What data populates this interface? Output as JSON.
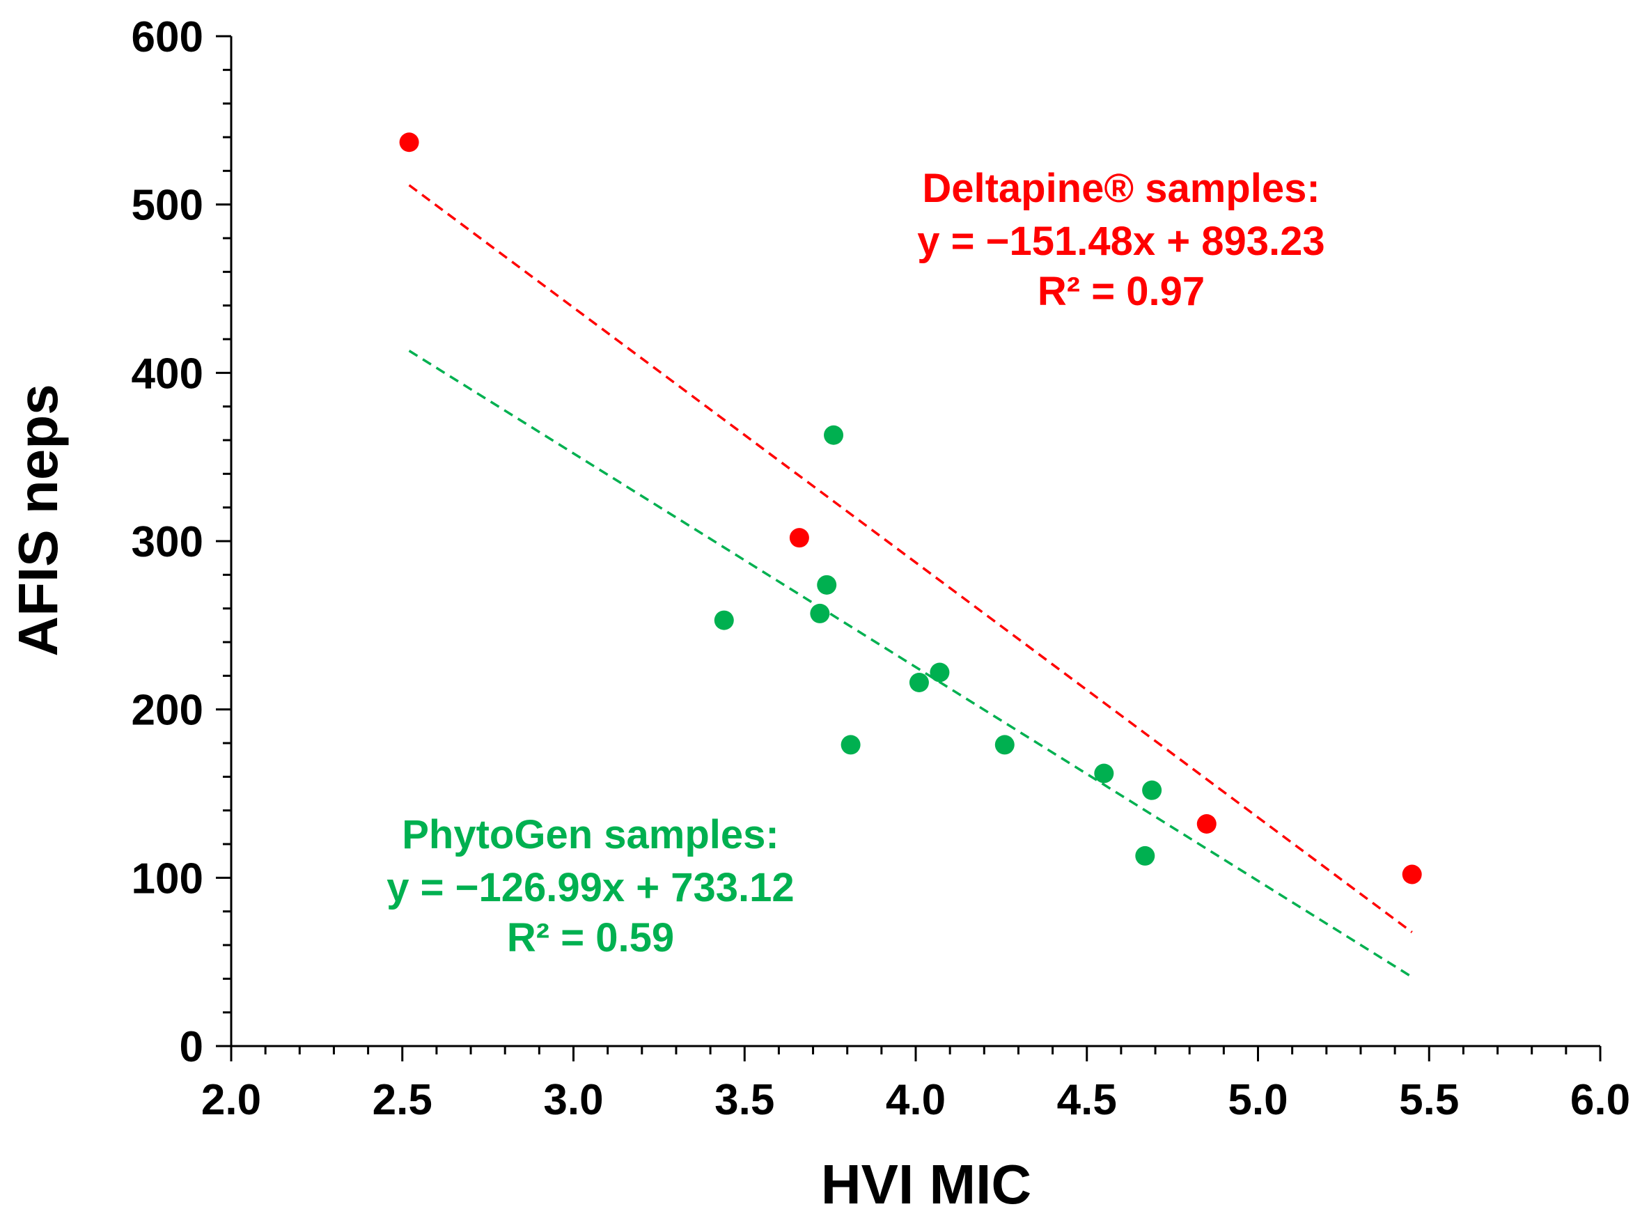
{
  "chart_data": {
    "type": "scatter",
    "xlabel": "HVI MIC",
    "ylabel": "AFIS neps",
    "xlim": [
      2.0,
      6.0
    ],
    "ylim": [
      0,
      600
    ],
    "x_ticks": [
      "2.0",
      "2.5",
      "3.0",
      "3.5",
      "4.0",
      "4.5",
      "5.0",
      "5.5",
      "6.0"
    ],
    "y_ticks": [
      "0",
      "100",
      "200",
      "300",
      "400",
      "500",
      "600"
    ],
    "x_tick_values": [
      2.0,
      2.5,
      3.0,
      3.5,
      4.0,
      4.5,
      5.0,
      5.5,
      6.0
    ],
    "y_tick_values": [
      0,
      100,
      200,
      300,
      400,
      500,
      600
    ],
    "grid": false,
    "legend": "none",
    "series": [
      {
        "color": "#ff0000",
        "points": [
          {
            "x": 2.52,
            "y": 537
          },
          {
            "x": 3.66,
            "y": 302
          },
          {
            "x": 4.85,
            "y": 132
          },
          {
            "x": 5.45,
            "y": 102
          }
        ],
        "trendline": {
          "slope": -151.48,
          "intercept": 893.23,
          "x_range": [
            2.52,
            5.45
          ]
        },
        "annotation": {
          "lines": [
            "Deltapine® samples:",
            "y = −151.48x + 893.23",
            "R² = 0.97"
          ]
        }
      },
      {
        "color": "#00b050",
        "points": [
          {
            "x": 3.44,
            "y": 253
          },
          {
            "x": 3.72,
            "y": 257
          },
          {
            "x": 3.74,
            "y": 274
          },
          {
            "x": 3.76,
            "y": 363
          },
          {
            "x": 3.81,
            "y": 179
          },
          {
            "x": 4.01,
            "y": 216
          },
          {
            "x": 4.07,
            "y": 222
          },
          {
            "x": 4.26,
            "y": 179
          },
          {
            "x": 4.55,
            "y": 162
          },
          {
            "x": 4.67,
            "y": 113
          },
          {
            "x": 4.69,
            "y": 152
          }
        ],
        "trendline": {
          "slope": -126.99,
          "intercept": 733.12,
          "x_range": [
            2.52,
            5.45
          ]
        },
        "annotation": {
          "lines": [
            "PhytoGen samples:",
            "y = −126.99x + 733.12",
            "R² = 0.59"
          ]
        }
      }
    ]
  }
}
